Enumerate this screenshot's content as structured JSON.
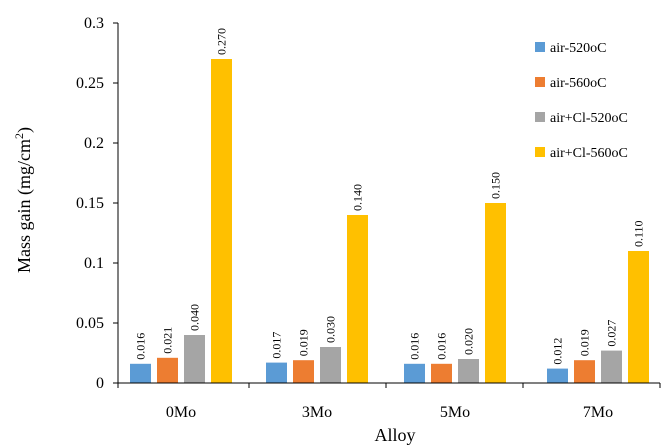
{
  "chart_data": {
    "type": "bar",
    "title": "",
    "xlabel": "Alloy",
    "ylabel": "Mass gain (mg/cm",
    "ylabel_sup": "2",
    "ylabel_close": ")",
    "categories": [
      "0Mo",
      "3Mo",
      "5Mo",
      "7Mo"
    ],
    "ylim": [
      0,
      0.3
    ],
    "yticks": [
      "0",
      "0.05",
      "0.1",
      "0.15",
      "0.2",
      "0.25",
      "0.3"
    ],
    "ytick_values": [
      0,
      0.05,
      0.1,
      0.15,
      0.2,
      0.25,
      0.3
    ],
    "grid": false,
    "legend_placement": "top-right",
    "series": [
      {
        "name": "air-520oC",
        "color": "#5b9bd5",
        "values": [
          0.016,
          0.017,
          0.016,
          0.012
        ],
        "labels": [
          "0.016",
          "0.017",
          "0.016",
          "0.012"
        ]
      },
      {
        "name": "air-560oC",
        "color": "#ed7d31",
        "values": [
          0.021,
          0.019,
          0.016,
          0.019
        ],
        "labels": [
          "0.021",
          "0.019",
          "0.016",
          "0.019"
        ]
      },
      {
        "name": "air+Cl-520oC",
        "color": "#a5a5a5",
        "values": [
          0.04,
          0.03,
          0.02,
          0.027
        ],
        "labels": [
          "0.040",
          "0.030",
          "0.020",
          "0.027"
        ]
      },
      {
        "name": "air+Cl-560oC",
        "color": "#ffc000",
        "values": [
          0.27,
          0.14,
          0.15,
          0.11
        ],
        "labels": [
          "0.270",
          "0.140",
          "0.150",
          "0.110"
        ]
      }
    ]
  }
}
